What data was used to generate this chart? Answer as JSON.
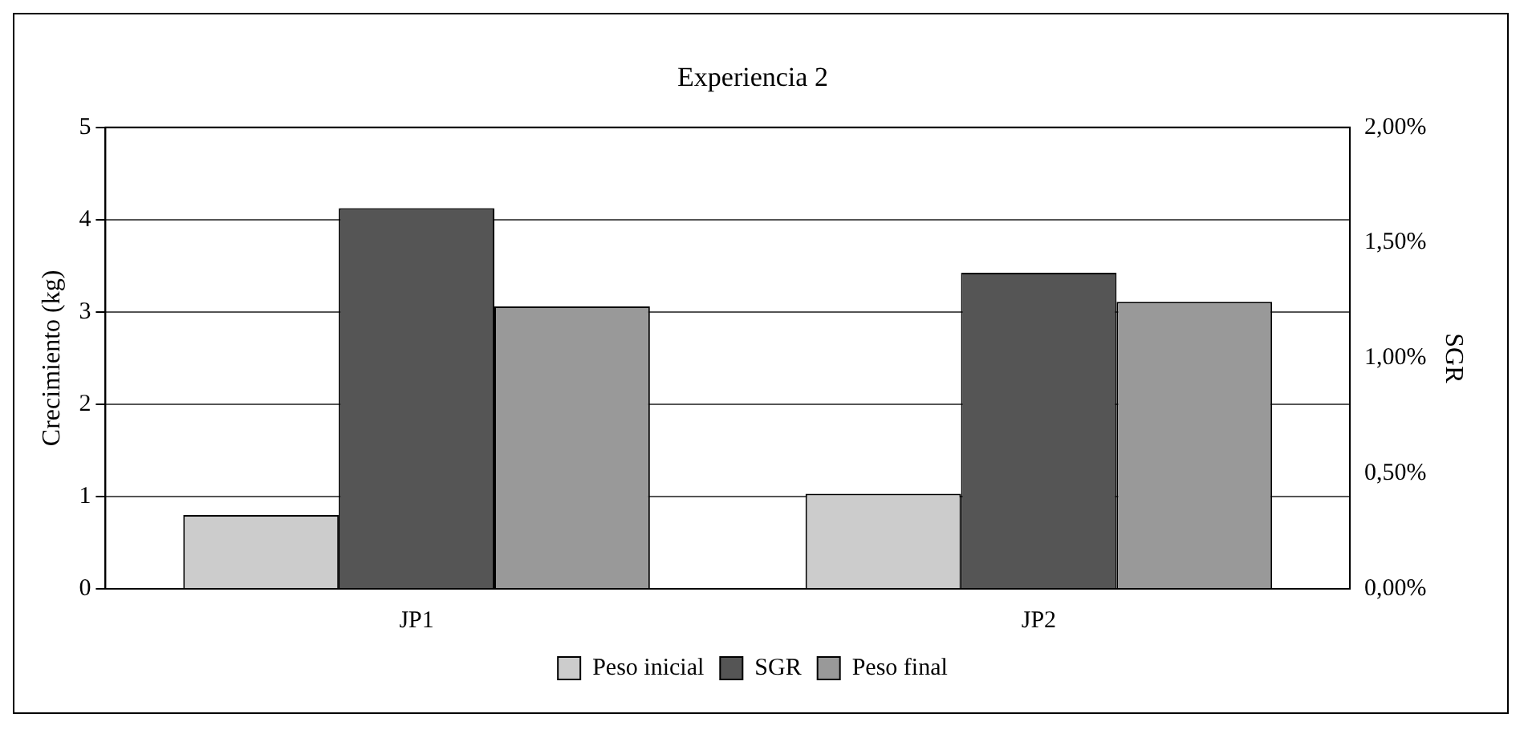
{
  "chart_data": {
    "type": "bar",
    "title": "Experiencia 2",
    "ylabel": "Crecimiento (kg)",
    "y2label": "SGR",
    "categories": [
      "JP1",
      "JP2"
    ],
    "series": [
      {
        "name": "Peso inicial",
        "color": "#cccccc",
        "values": [
          0.8,
          1.03
        ]
      },
      {
        "name": "SGR",
        "color": "#555555",
        "values": [
          1.65,
          1.37
        ],
        "axis": "y2"
      },
      {
        "name": "Peso final",
        "color": "#999999",
        "values": [
          3.06,
          3.11
        ]
      }
    ],
    "ylim": [
      0,
      5
    ],
    "yticks": [
      0,
      1,
      2,
      3,
      4,
      5
    ],
    "y2lim": [
      0,
      2
    ],
    "y2ticks": [
      {
        "value": 0,
        "label": "0,00%"
      },
      {
        "value": 0.5,
        "label": "0,50%"
      },
      {
        "value": 1,
        "label": "1,00%"
      },
      {
        "value": 1.5,
        "label": "1,50%"
      },
      {
        "value": 2,
        "label": "2,00%"
      }
    ],
    "grid": "y",
    "legend": "bottom"
  }
}
